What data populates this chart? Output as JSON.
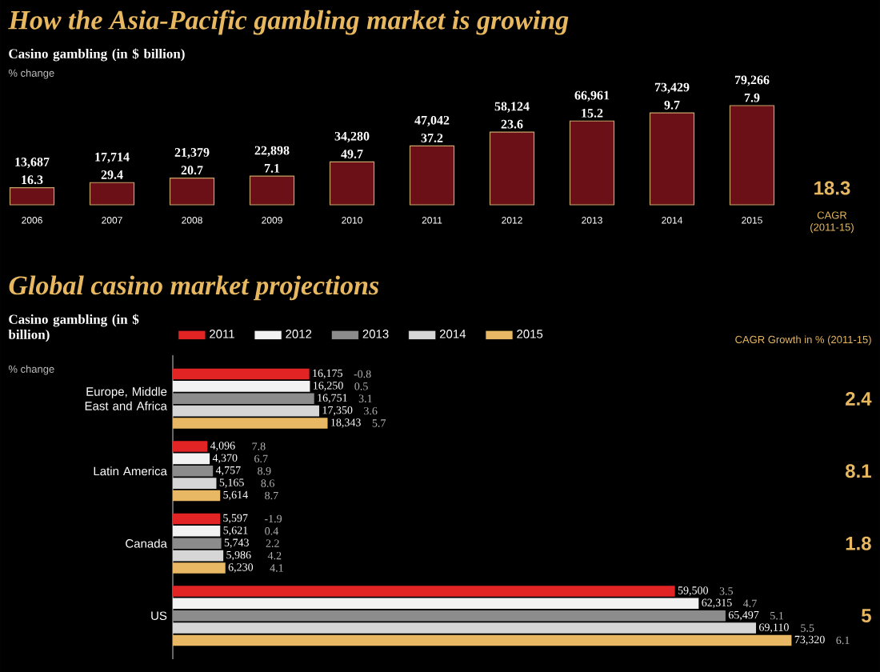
{
  "chart_data": [
    {
      "type": "bar",
      "title": "How the Asia-Pacific gambling market is growing",
      "ylabel": "Casino gambling (in $ billion)",
      "subtitle": "% change",
      "categories": [
        "2006",
        "2007",
        "2008",
        "2009",
        "2010",
        "2011",
        "2012",
        "2013",
        "2014",
        "2015"
      ],
      "series": [
        {
          "color": "#6b1016",
          "values": [
            13687,
            17714,
            21379,
            22898,
            34280,
            47042,
            58124,
            66961,
            73429,
            79266
          ],
          "value_labels": [
            "13,687",
            "17,714",
            "21,379",
            "22,898",
            "34,280",
            "47,042",
            "58,124",
            "66,961",
            "73,429",
            "79,266"
          ]
        }
      ],
      "annotations": [
        "18.3",
        "CAGR (2011-15)",
        "16.3",
        "29.4",
        "20.7",
        "7.1",
        "49.7",
        "37.2",
        "23.6",
        "15.2",
        "9.7",
        "7.9"
      ]
    },
    {
      "type": "bar",
      "orientation": "horizontal",
      "title": "Global casino market projections",
      "ylabel": "Casino gambling (in $ billion)",
      "subtitle": "% change",
      "legend": "top",
      "categories": [
        "Europe, Middle East and Africa",
        "Latin America",
        "Canada",
        "US"
      ],
      "series": [
        {
          "name": "2011",
          "color": "#e32424",
          "values": [
            16175,
            4096,
            5597,
            59500
          ],
          "value_labels": [
            "16,175",
            "4,096",
            "5,597",
            "59,500"
          ]
        },
        {
          "name": "2012",
          "color": "#f2f2f2",
          "values": [
            16250,
            4370,
            5621,
            62315
          ],
          "value_labels": [
            "16,250",
            "4,370",
            "5,621",
            "62,315"
          ]
        },
        {
          "name": "2013",
          "color": "#8c8c8c",
          "values": [
            16751,
            4757,
            5743,
            65497
          ],
          "value_labels": [
            "16,751",
            "4,757",
            "5,743",
            "65,497"
          ]
        },
        {
          "name": "2014",
          "color": "#d6d6d6",
          "values": [
            17350,
            5165,
            5986,
            69110
          ],
          "value_labels": [
            "17,350",
            "5,165",
            "5,986",
            "69,110"
          ]
        },
        {
          "name": "2015",
          "color": "#e9b864",
          "values": [
            18343,
            5614,
            6230,
            73320
          ],
          "value_labels": [
            "18,343",
            "5,614",
            "6,230",
            "73,320"
          ]
        }
      ],
      "annotations": [
        "CAGR Growth in % (2011-15)",
        "2.4",
        "8.1",
        "1.8",
        "5",
        "-0.8",
        "0.5",
        "3.1",
        "3.6",
        "5.7",
        "7.8",
        "6.7",
        "8.9",
        "8.6",
        "8.7",
        "-1.9",
        "0.4",
        "2.2",
        "4.2",
        "4.1",
        "3.5",
        "4.7",
        "5.1",
        "5.5",
        "6.1"
      ]
    }
  ]
}
